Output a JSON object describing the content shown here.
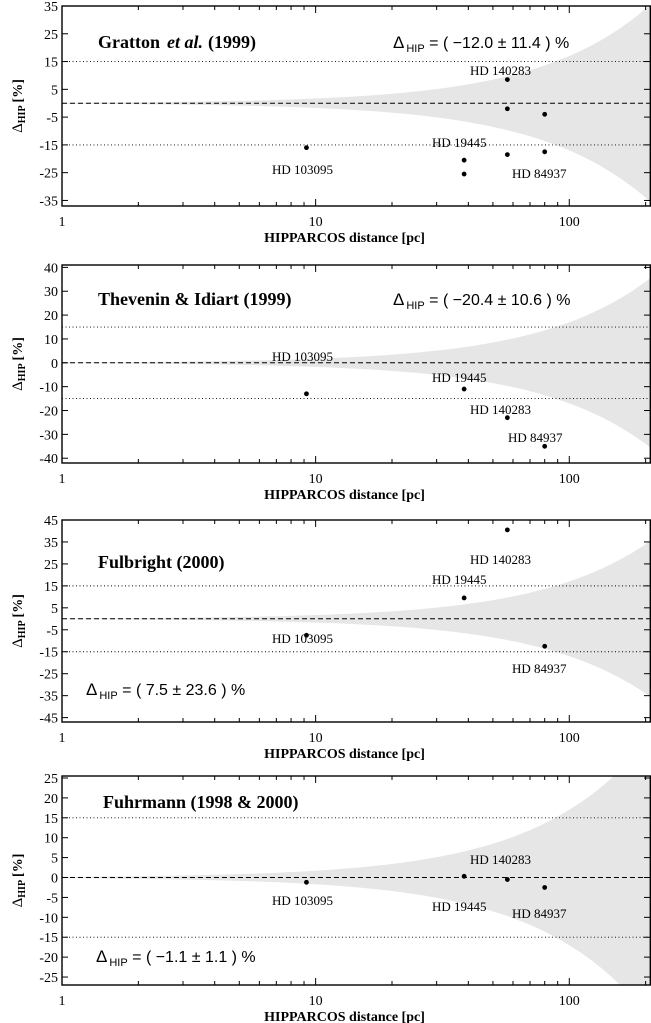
{
  "chart_data": [
    {
      "type": "scatter",
      "title": "Gratton",
      "title_emph": "et al.",
      "title_year": "(1999)",
      "formula": "Δ HIP = ( −12.0 ± 11.4 ) %",
      "formula_delta": "Δ",
      "formula_sub": "HIP",
      "formula_rest": " = ( −12.0 ± 11.4 ) %",
      "xlabel": "HIPPARCOS distance [pc]",
      "ylabel_delta": "Δ",
      "ylabel_sub": "HIP",
      "ylabel_rest": "[%]",
      "x_scale": "log",
      "xlim": [
        1,
        210
      ],
      "ylim": [
        -37,
        35
      ],
      "x_ticks": [
        1,
        10,
        100
      ],
      "x_tick_labels": [
        "1",
        "10",
        "100"
      ],
      "y_ticks": [
        35,
        25,
        15,
        5,
        -5,
        -15,
        -25,
        -35
      ],
      "y_tick_labels": [
        "35",
        "25",
        "15",
        "5",
        "-5",
        "-15",
        "-25",
        "-35"
      ],
      "threshold_lines": [
        15,
        -15
      ],
      "points": [
        {
          "x": 9.2,
          "y": -16,
          "label": "HD 103095"
        },
        {
          "x": 38.5,
          "y": -20.5,
          "label": ""
        },
        {
          "x": 38.5,
          "y": -25.5,
          "label": ""
        },
        {
          "x": 57,
          "y": 8.5,
          "label": "HD 140283"
        },
        {
          "x": 57,
          "y": -2,
          "label": ""
        },
        {
          "x": 57,
          "y": -18.5,
          "label": ""
        },
        {
          "x": 80,
          "y": -4,
          "label": ""
        },
        {
          "x": 80,
          "y": -17.5,
          "label": ""
        }
      ],
      "annotations": [
        {
          "text": "HD 19445"
        },
        {
          "text": "HD 84937"
        }
      ]
    },
    {
      "type": "scatter",
      "title": "Thevenin & Idiart (1999)",
      "formula_delta": "Δ",
      "formula_sub": "HIP",
      "formula_rest": " = ( −20.4 ± 10.6 ) %",
      "xlabel": "HIPPARCOS distance [pc]",
      "ylabel_delta": "Δ",
      "ylabel_sub": "HIP",
      "ylabel_rest": "[%]",
      "x_scale": "log",
      "xlim": [
        1,
        210
      ],
      "ylim": [
        -42,
        41
      ],
      "x_ticks": [
        1,
        10,
        100
      ],
      "x_tick_labels": [
        "1",
        "10",
        "100"
      ],
      "y_ticks": [
        40,
        30,
        20,
        10,
        0,
        -10,
        -20,
        -30,
        -40
      ],
      "y_tick_labels": [
        "40",
        "30",
        "20",
        "10",
        "0",
        "-10",
        "-20",
        "-30",
        "-40"
      ],
      "threshold_lines": [
        15,
        -15
      ],
      "points": [
        {
          "x": 9.2,
          "y": -13,
          "label": "HD 103095"
        },
        {
          "x": 38.5,
          "y": -11,
          "label": "HD 19445"
        },
        {
          "x": 57,
          "y": -23,
          "label": "HD 140283"
        },
        {
          "x": 80,
          "y": -35,
          "label": "HD 84937"
        }
      ]
    },
    {
      "type": "scatter",
      "title": "Fulbright (2000)",
      "formula_delta": "Δ",
      "formula_sub": "HIP",
      "formula_rest": " = (  7.5 ± 23.6 ) %",
      "xlabel": "HIPPARCOS distance [pc]",
      "ylabel_delta": "Δ",
      "ylabel_sub": "HIP",
      "ylabel_rest": "[%]",
      "x_scale": "log",
      "xlim": [
        1,
        210
      ],
      "ylim": [
        -47,
        45
      ],
      "x_ticks": [
        1,
        10,
        100
      ],
      "x_tick_labels": [
        "1",
        "10",
        "100"
      ],
      "y_ticks": [
        45,
        35,
        25,
        15,
        5,
        -5,
        -15,
        -25,
        -35,
        -45
      ],
      "y_tick_labels": [
        "45",
        "35",
        "25",
        "15",
        "5",
        "-5",
        "-15",
        "-25",
        "-35",
        "-45"
      ],
      "threshold_lines": [
        15,
        -15
      ],
      "points": [
        {
          "x": 9.2,
          "y": -7.5,
          "label": "HD 103095"
        },
        {
          "x": 38.5,
          "y": 9.5,
          "label": "HD 19445"
        },
        {
          "x": 57,
          "y": 40.5,
          "label": "HD 140283"
        },
        {
          "x": 80,
          "y": -12.5,
          "label": "HD 84937"
        }
      ]
    },
    {
      "type": "scatter",
      "title": "Fuhrmann (1998 & 2000)",
      "formula_delta": "Δ",
      "formula_sub": "HIP",
      "formula_rest": " = ( −1.1 ±  1.1 ) %",
      "xlabel": "HIPPARCOS distance [pc]",
      "ylabel_delta": "Δ",
      "ylabel_sub": "HIP",
      "ylabel_rest": "[%]",
      "x_scale": "log",
      "xlim": [
        1,
        210
      ],
      "ylim": [
        -27,
        25.5
      ],
      "x_ticks": [
        1,
        10,
        100
      ],
      "x_tick_labels": [
        "1",
        "10",
        "100"
      ],
      "y_ticks": [
        25,
        20,
        15,
        10,
        5,
        0,
        -5,
        -10,
        -15,
        -20,
        -25
      ],
      "y_tick_labels": [
        "25",
        "20",
        "15",
        "10",
        "5",
        "0",
        "-5",
        "-10",
        "-15",
        "-20",
        "-25"
      ],
      "threshold_lines": [
        15,
        -15
      ],
      "points": [
        {
          "x": 9.2,
          "y": -1.2,
          "label": "HD 103095"
        },
        {
          "x": 38.5,
          "y": 0.3,
          "label": "HD 19445"
        },
        {
          "x": 57,
          "y": -0.5,
          "label": "HD 140283"
        },
        {
          "x": 80,
          "y": -2.5,
          "label": "HD 84937"
        }
      ]
    }
  ]
}
